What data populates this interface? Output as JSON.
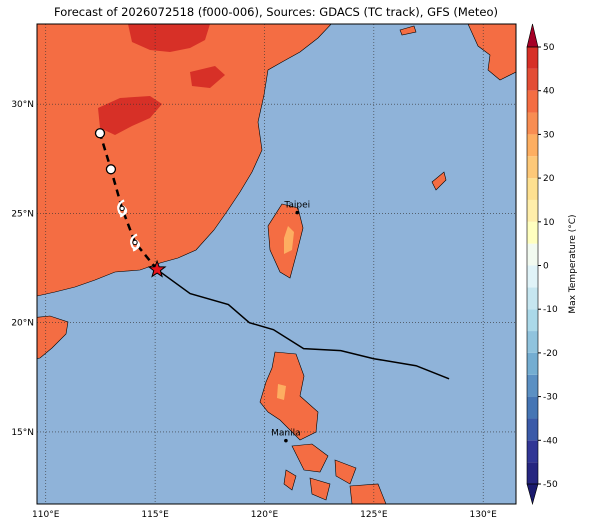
{
  "chart_data": {
    "type": "track_map",
    "title": "Forecast of 2026072518 (f000-006), Sources: GDACS (TC track), GFS (Meteo)",
    "xlim": [
      109.6,
      131.5
    ],
    "ylim": [
      11.7,
      33.67
    ],
    "xticks": [
      {
        "value": 110,
        "label": "110°E"
      },
      {
        "value": 115,
        "label": "115°E"
      },
      {
        "value": 120,
        "label": "120°E"
      },
      {
        "value": 125,
        "label": "125°E"
      },
      {
        "value": 130,
        "label": "130°E"
      }
    ],
    "yticks": [
      {
        "value": 15,
        "label": "15°N"
      },
      {
        "value": 20,
        "label": "20°N"
      },
      {
        "value": 25,
        "label": "25°N"
      },
      {
        "value": 30,
        "label": "30°N"
      }
    ],
    "grid": true,
    "forecast_track": {
      "lon": [
        115.09,
        114.08,
        113.49,
        112.98,
        112.48
      ],
      "lat": [
        22.43,
        23.67,
        25.23,
        27.02,
        28.67
      ],
      "markers": [
        "star",
        "storm",
        "storm",
        "circle",
        "circle"
      ]
    },
    "past_track": {
      "lon": [
        115.09,
        116.6,
        118.35,
        119.31,
        120.41,
        121.79,
        123.49,
        125.0,
        126.93,
        128.44
      ],
      "lat": [
        22.43,
        21.33,
        20.83,
        20.0,
        19.68,
        18.81,
        18.72,
        18.35,
        18.03,
        17.43
      ]
    },
    "cities": [
      {
        "name": "Taipei",
        "lon": 121.5,
        "lat": 25.04
      },
      {
        "name": "Manila",
        "lon": 120.98,
        "lat": 14.6
      }
    ],
    "colorbar": {
      "label": "Max Temperature (°C)",
      "lim": [
        -50,
        50
      ],
      "ticks": [
        -50,
        -40,
        -30,
        -20,
        -10,
        0,
        10,
        20,
        30,
        40,
        50
      ],
      "colors": [
        "#262680",
        "#313695",
        "#3a5aa8",
        "#4575b4",
        "#5b90c3",
        "#74add1",
        "#90c3dd",
        "#abd9e9",
        "#c6e6f0",
        "#e0f3f8",
        "#f2faf0",
        "#ffffbf",
        "#ffeeaa",
        "#fee090",
        "#fdc878",
        "#fdae61",
        "#f88d52",
        "#f46d43",
        "#e34d35",
        "#d73027"
      ],
      "under": "#1a1a6e",
      "over": "#a50026"
    }
  }
}
